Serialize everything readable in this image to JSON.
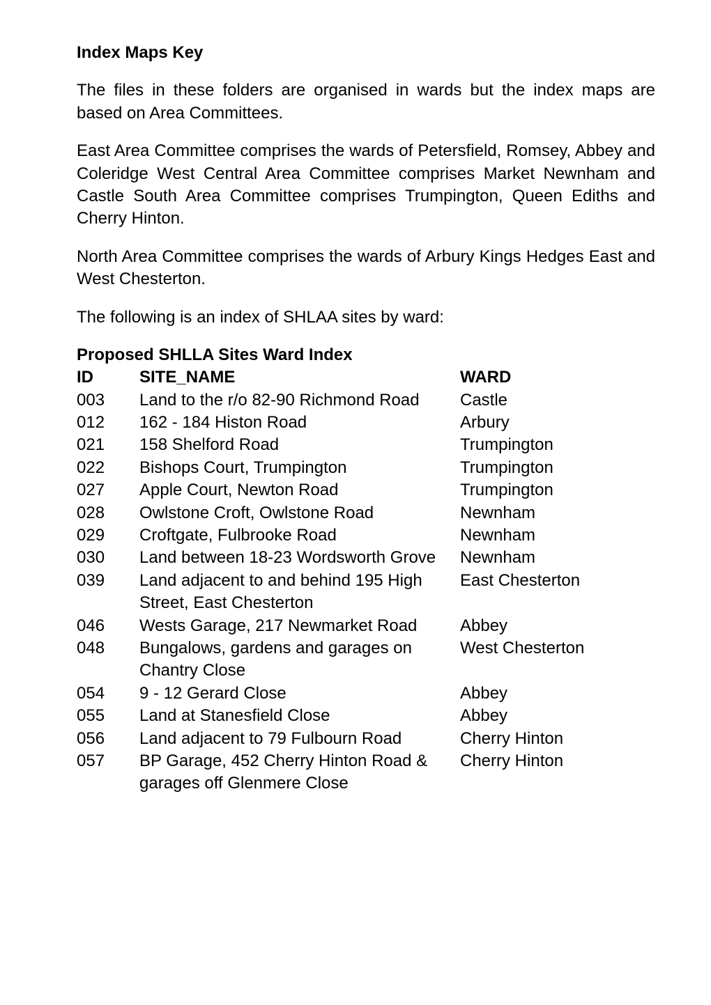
{
  "title": "Index Maps Key",
  "paragraphs": {
    "p1": "The files in these folders are organised in wards but the index maps are based on Area Committees.",
    "p2": "East Area Committee comprises the wards of Petersfield, Romsey, Abbey and Coleridge West Central Area Committee comprises Market Newnham and Castle South Area Committee comprises Trumpington, Queen Ediths and Cherry Hinton.",
    "p3": "North Area Committee comprises the wards of Arbury Kings Hedges East and West Chesterton.",
    "p4": "The following is an index of SHLAA sites by ward:"
  },
  "table_title": "Proposed SHLLA Sites Ward Index",
  "headers": {
    "id": "ID",
    "name": "SITE_NAME",
    "ward": "WARD"
  },
  "rows": [
    {
      "id": "003",
      "name": "Land to the r/o 82-90 Richmond Road",
      "ward": "Castle"
    },
    {
      "id": "012",
      "name": "162 - 184 Histon Road",
      "ward": "Arbury"
    },
    {
      "id": "021",
      "name": "158 Shelford Road",
      "ward": "Trumpington"
    },
    {
      "id": "022",
      "name": "Bishops Court, Trumpington",
      "ward": "Trumpington"
    },
    {
      "id": "027",
      "name": "Apple Court, Newton Road",
      "ward": "Trumpington"
    },
    {
      "id": "028",
      "name": "Owlstone Croft, Owlstone Road",
      "ward": "Newnham"
    },
    {
      "id": "029",
      "name": "Croftgate, Fulbrooke Road",
      "ward": "Newnham"
    },
    {
      "id": "030",
      "name": "Land between 18-23 Wordsworth Grove",
      "ward": "Newnham"
    },
    {
      "id": "039",
      "name": "Land adjacent to and behind 195 High Street, East Chesterton",
      "ward": "East Chesterton"
    },
    {
      "id": "046",
      "name": "Wests Garage, 217 Newmarket Road",
      "ward": "Abbey"
    },
    {
      "id": "048",
      "name": "Bungalows, gardens and garages on Chantry Close",
      "ward": "West Chesterton"
    },
    {
      "id": "054",
      "name": "9 - 12 Gerard Close",
      "ward": "Abbey"
    },
    {
      "id": "055",
      "name": "Land at Stanesfield Close",
      "ward": "Abbey"
    },
    {
      "id": "056",
      "name": "Land adjacent to 79 Fulbourn Road",
      "ward": "Cherry Hinton"
    },
    {
      "id": "057",
      "name": "BP Garage, 452 Cherry Hinton Road & garages off Glenmere Close",
      "ward": "Cherry Hinton"
    }
  ]
}
